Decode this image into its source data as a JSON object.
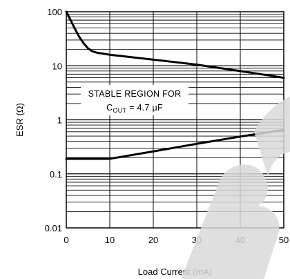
{
  "chart_data": {
    "type": "line",
    "title": "",
    "xlabel": "Load Current (mA)",
    "ylabel": "ESR (Ω)",
    "x_scale": "linear",
    "y_scale": "log",
    "xlim": [
      0,
      50
    ],
    "ylim": [
      0.01,
      100
    ],
    "x_ticks": [
      0,
      10,
      20,
      30,
      40,
      50
    ],
    "x_tick_labels": [
      "0",
      "10",
      "20",
      "30",
      "40",
      "50"
    ],
    "y_tick_labels": [
      "0.01",
      "0.1",
      "1",
      "10",
      "100"
    ],
    "grid": true,
    "series": [
      {
        "x": [
          0,
          1,
          2,
          3,
          4,
          5,
          6,
          7,
          8,
          10,
          20,
          30,
          40,
          50
        ],
        "y": [
          100,
          70,
          48,
          34,
          26,
          21,
          18.5,
          17.5,
          17,
          16,
          13,
          10.5,
          8,
          6
        ]
      },
      {
        "x": [
          0,
          10,
          20,
          30,
          40,
          50
        ],
        "y": [
          0.19,
          0.19,
          0.26,
          0.36,
          0.49,
          0.65
        ]
      }
    ],
    "annotation": {
      "line1": "STABLE REGION FOR",
      "line2_prefix": "C",
      "line2_sub": "OUT",
      "line2_suffix": " = 4.7 μF"
    }
  },
  "watermark": {
    "text": "BC"
  }
}
